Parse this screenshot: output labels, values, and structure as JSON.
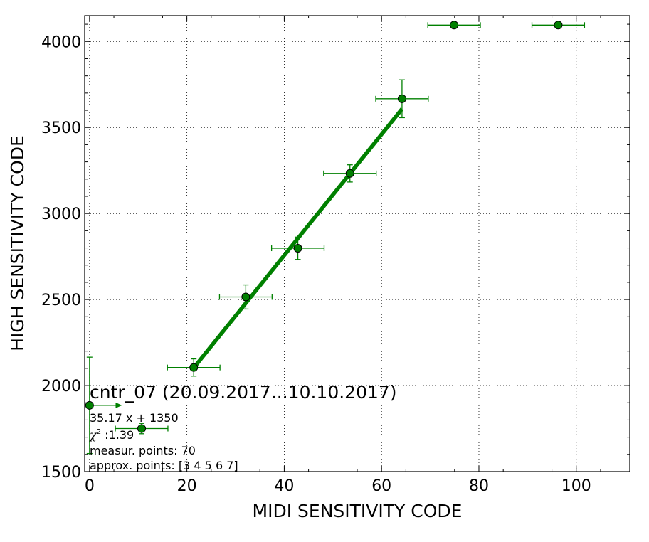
{
  "chart_data": {
    "type": "scatter",
    "title": "",
    "xlabel": "MIDI SENSITIVITY CODE",
    "ylabel": "HIGH SENSITIVITY CODE",
    "xlim": [
      -1,
      111
    ],
    "ylim": [
      1500,
      4150
    ],
    "grid": true,
    "x_ticks": [
      0,
      20,
      40,
      60,
      80,
      100
    ],
    "y_ticks": [
      1500,
      2000,
      2500,
      3000,
      3500,
      4000
    ],
    "x_tick_labels": [
      "0",
      "20",
      "40",
      "60",
      "80",
      "100"
    ],
    "y_tick_labels": [
      "1500",
      "2000",
      "2500",
      "3000",
      "3500",
      "4000"
    ],
    "colors": {
      "series": "#008000",
      "marker_edge": "#000000",
      "grid": "#000000"
    },
    "series": [
      {
        "marker": "circle",
        "points": [
          {
            "x": 0,
            "y": 1885,
            "xerr": 5.5,
            "yerr": 280,
            "x_arrow": true
          },
          {
            "x": 10.7,
            "y": 1750,
            "xerr": 5.4,
            "yerr": 30
          },
          {
            "x": 21.4,
            "y": 2105,
            "xerr": 5.4,
            "yerr": 50
          },
          {
            "x": 32.1,
            "y": 2515,
            "xerr": 5.4,
            "yerr": 70
          },
          {
            "x": 42.8,
            "y": 2798,
            "xerr": 5.4,
            "yerr": 65
          },
          {
            "x": 53.5,
            "y": 3233,
            "xerr": 5.4,
            "yerr": 50
          },
          {
            "x": 64.2,
            "y": 3667,
            "xerr": 5.4,
            "yerr": 110
          },
          {
            "x": 74.9,
            "y": 4095,
            "xerr": 5.4,
            "yerr": 0
          },
          {
            "x": 96.3,
            "y": 4095,
            "xerr": 5.4,
            "yerr": 0
          }
        ]
      }
    ],
    "fit": {
      "slope": 35.17,
      "intercept": 1350,
      "x_range": [
        21.4,
        64.2
      ]
    },
    "annotations": {
      "title": "cntr_07 (20.09.2017...10.10.2017)",
      "equation": "35.17 x + 1350",
      "chi_symbol": "χ",
      "chi_exp": "2",
      "chi_value": " :1.39",
      "measur_points": "measur. points: 70",
      "approx_points": "approx. points: [3 4 5 6 7]"
    }
  }
}
